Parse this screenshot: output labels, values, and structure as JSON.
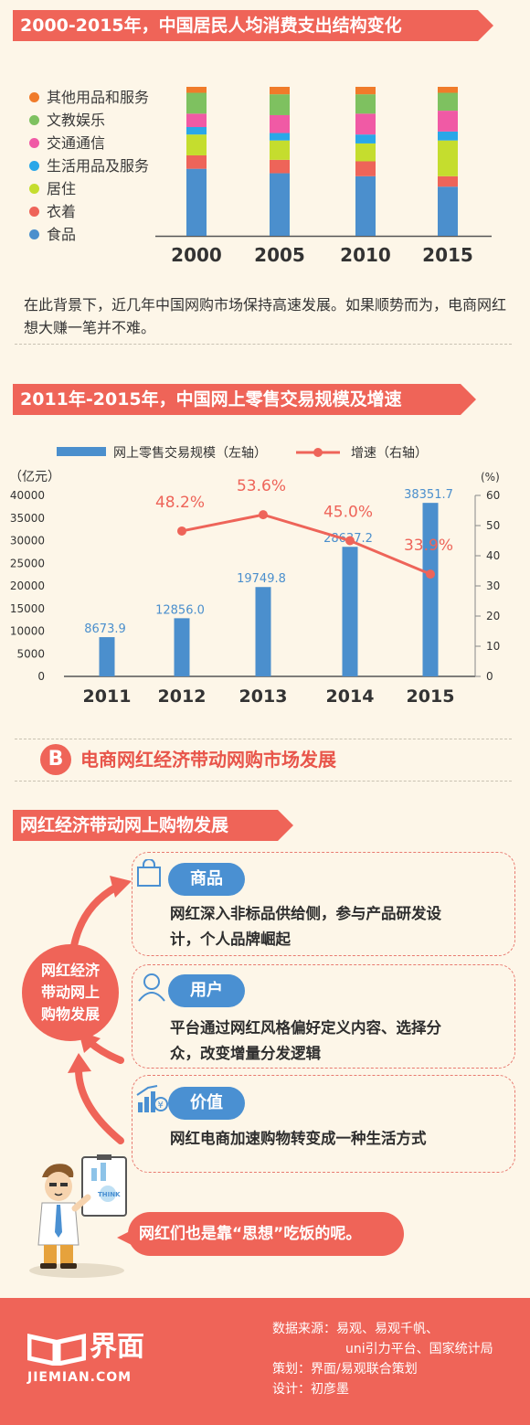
{
  "section1": {
    "title": "2000-2015年，中国居民人均消费支出结构变化",
    "legend": [
      {
        "label": "其他用品和服务",
        "color": "#f07b2a"
      },
      {
        "label": "文教娱乐",
        "color": "#7ec160"
      },
      {
        "label": "交通通信",
        "color": "#f05aa5"
      },
      {
        "label": "生活用品及服务",
        "color": "#2aa7e8"
      },
      {
        "label": "居住",
        "color": "#c5dd2e"
      },
      {
        "label": "衣着",
        "color": "#ee6459"
      },
      {
        "label": "食品",
        "color": "#4b8fcd"
      }
    ]
  },
  "paragraph": "在此背景下，近几年中国网购市场保持高速发展。如果顺势而为，电商网红想大赚一笔并不难。",
  "section2": {
    "title": "2011年-2015年，中国网上零售交易规模及增速"
  },
  "sectionB": {
    "badge": "B",
    "title": "电商网红经济带动网购市场发展"
  },
  "section3": {
    "title": "网红经济带动网上购物发展",
    "center_circle": [
      "网红经济",
      "带动网上",
      "购物发展"
    ],
    "cards": [
      {
        "pill": "商品",
        "icon": "shopping-bag-icon",
        "lines": [
          "网红深入非标品供给侧，参与产品研发设",
          "计，个人品牌崛起"
        ]
      },
      {
        "pill": "用户",
        "icon": "user-icon",
        "lines": [
          "平台通过网红风格偏好定义内容、选择分",
          "众，改变增量分发逻辑"
        ]
      },
      {
        "pill": "价值",
        "icon": "value-chart-icon",
        "lines": [
          "网红电商加速购物转变成一种生活方式"
        ]
      }
    ],
    "speech": "网红们也是靠“思想”吃饭的呢。",
    "board_label": "THINK"
  },
  "footer": {
    "logo_text": "界面",
    "logo_sub": "JIEMIAN.COM",
    "source_label": "数据来源：易观、易观千帆、",
    "source_cont": "uni引力平台、国家统计局",
    "planning": "策划：界面/易观联合策划",
    "design": "设计：初彦墨"
  },
  "chart_data": [
    {
      "type": "bar",
      "title": "2000-2015年，中国居民人均消费支出结构变化",
      "stacked": true,
      "categories": [
        "2000",
        "2005",
        "2010",
        "2015"
      ],
      "series": [
        {
          "name": "食品",
          "color": "#4b8fcd",
          "values": [
            45,
            42,
            40,
            33
          ]
        },
        {
          "name": "衣着",
          "color": "#ee6459",
          "values": [
            9,
            9,
            10,
            7
          ]
        },
        {
          "name": "居住",
          "color": "#c5dd2e",
          "values": [
            14,
            13,
            12,
            24
          ]
        },
        {
          "name": "生活用品及服务",
          "color": "#2aa7e8",
          "values": [
            5,
            5,
            6,
            6
          ]
        },
        {
          "name": "交通通信",
          "color": "#f05aa5",
          "values": [
            9,
            12,
            14,
            14
          ]
        },
        {
          "name": "文教娱乐",
          "color": "#7ec160",
          "values": [
            14,
            14,
            13,
            12
          ]
        },
        {
          "name": "其他用品和服务",
          "color": "#f07b2a",
          "values": [
            4,
            5,
            5,
            4
          ]
        }
      ]
    },
    {
      "type": "bar",
      "title": "2011年-2015年，中国网上零售交易规模及增速",
      "categories": [
        "2011",
        "2012",
        "2013",
        "2014",
        "2015"
      ],
      "series": [
        {
          "name": "网上零售交易规模（左轴）",
          "kind": "bar",
          "axis": "left",
          "color": "#4b8fcd",
          "values": [
            8673.9,
            12856.0,
            19749.8,
            28637.2,
            38351.7
          ],
          "labels": [
            "8673.9",
            "12856.0",
            "19749.8",
            "28637.2",
            "38351.7"
          ]
        },
        {
          "name": "增速（右轴）",
          "kind": "line",
          "axis": "right",
          "color": "#ee6459",
          "values": [
            null,
            48.2,
            53.6,
            45.0,
            33.9
          ],
          "labels": [
            "",
            "48.2%",
            "53.6%",
            "45.0%",
            "33.9%"
          ]
        }
      ],
      "ylabel_left": "（亿元）",
      "ylabel_right": "(%)",
      "ylim_left": [
        0,
        40000
      ],
      "ylim_right": [
        0,
        60
      ],
      "yticks_left": [
        0,
        5000,
        10000,
        15000,
        20000,
        25000,
        30000,
        35000,
        40000
      ],
      "yticks_right": [
        0,
        10,
        20,
        30,
        40,
        50,
        60
      ],
      "legend_position": "top"
    }
  ]
}
